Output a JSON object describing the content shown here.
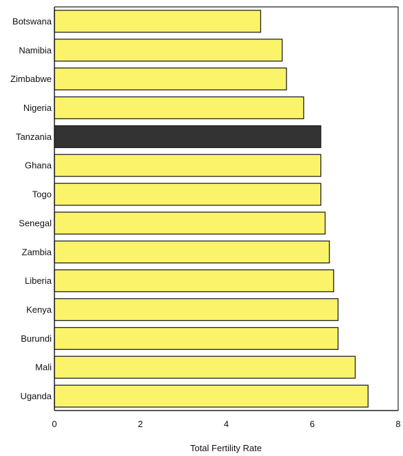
{
  "chart_data": {
    "type": "bar",
    "orientation": "horizontal",
    "title": "",
    "xlabel": "Total Fertility Rate",
    "ylabel": "",
    "xlim": [
      0,
      8
    ],
    "xticks": [
      0,
      2,
      4,
      6,
      8
    ],
    "grid": false,
    "categories": [
      "Botswana",
      "Namibia",
      "Zimbabwe",
      "Nigeria",
      "Tanzania",
      "Ghana",
      "Togo",
      "Senegal",
      "Zambia",
      "Liberia",
      "Kenya",
      "Burundi",
      "Mali",
      "Uganda"
    ],
    "values": [
      4.8,
      5.3,
      5.4,
      5.8,
      6.2,
      6.2,
      6.2,
      6.3,
      6.4,
      6.5,
      6.6,
      6.6,
      7.0,
      7.3
    ],
    "highlight": "Tanzania",
    "colors": {
      "bar": "#fbf46a",
      "highlight": "#333333",
      "edge": "#222222",
      "axis": "#222222"
    }
  }
}
